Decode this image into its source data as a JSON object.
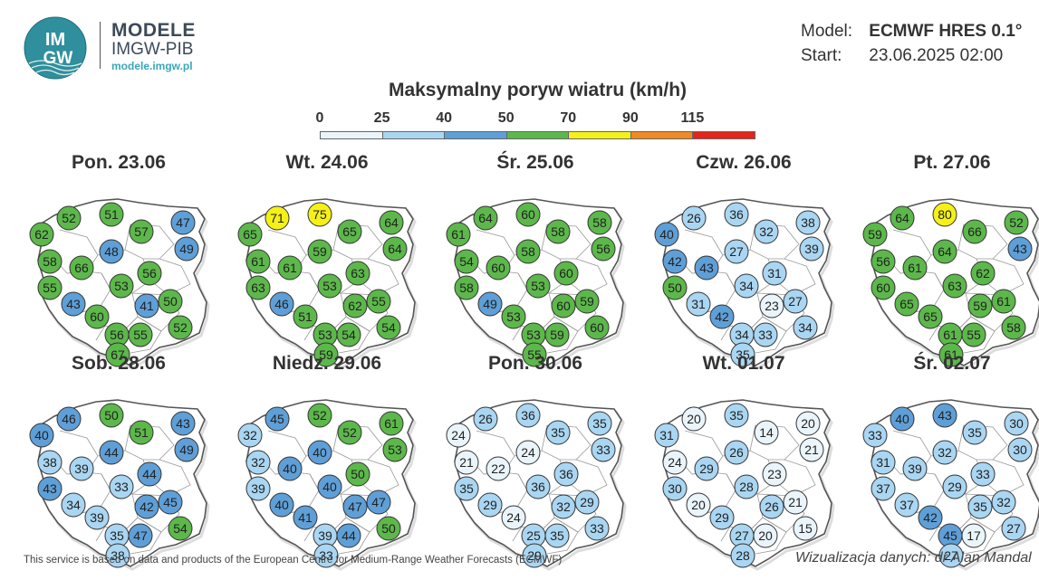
{
  "brand": {
    "logo_text_top": "IM",
    "logo_text_bottom": "GW",
    "title": "MODELE",
    "subtitle": "IMGW-PIB",
    "url": "modele.imgw.pl"
  },
  "meta": {
    "model_label": "Model:",
    "model_value": "ECMWF HRES 0.1°",
    "start_label": "Start:",
    "start_value": "23.06.2025 02:00"
  },
  "map_title": "Maksymalny poryw wiatru (km/h)",
  "scale": {
    "ticks": [
      "0",
      "25",
      "40",
      "50",
      "70",
      "90",
      "115"
    ],
    "bins": [
      {
        "from": 0,
        "to": 25,
        "color": "#eaf4fb"
      },
      {
        "from": 25,
        "to": 40,
        "color": "#a9d6f2"
      },
      {
        "from": 40,
        "to": 50,
        "color": "#5e9fd8"
      },
      {
        "from": 50,
        "to": 70,
        "color": "#5cb84a"
      },
      {
        "from": 70,
        "to": 90,
        "color": "#f5f017"
      },
      {
        "from": 90,
        "to": 115,
        "color": "#f08a24"
      },
      {
        "from": 115,
        "to": 140,
        "color": "#e3251c"
      }
    ]
  },
  "days": [
    {
      "label": "Pon. 23.06",
      "values": [
        62,
        52,
        51,
        57,
        47,
        49,
        58,
        66,
        48,
        56,
        55,
        53,
        41,
        50,
        52,
        43,
        60,
        56,
        55,
        67
      ]
    },
    {
      "label": "Wt. 24.06",
      "values": [
        65,
        71,
        75,
        65,
        64,
        64,
        61,
        61,
        59,
        63,
        63,
        53,
        62,
        55,
        54,
        46,
        51,
        53,
        54,
        59
      ]
    },
    {
      "label": "Śr. 25.06",
      "values": [
        61,
        64,
        60,
        58,
        58,
        56,
        54,
        60,
        58,
        60,
        58,
        53,
        60,
        59,
        60,
        49,
        53,
        53,
        59,
        55
      ]
    },
    {
      "label": "Czw. 26.06",
      "values": [
        40,
        26,
        36,
        32,
        38,
        39,
        42,
        43,
        27,
        31,
        50,
        34,
        23,
        27,
        34,
        31,
        42,
        34,
        33,
        35
      ]
    },
    {
      "label": "Pt. 27.06",
      "values": [
        59,
        64,
        80,
        66,
        52,
        43,
        56,
        61,
        64,
        62,
        60,
        63,
        59,
        61,
        58,
        65,
        65,
        61,
        55,
        61
      ]
    },
    {
      "label": "Sob. 28.06",
      "values": [
        40,
        46,
        50,
        51,
        43,
        49,
        38,
        39,
        44,
        44,
        43,
        33,
        42,
        45,
        54,
        34,
        39,
        35,
        47,
        38
      ]
    },
    {
      "label": "Niedz. 29.06",
      "values": [
        32,
        45,
        52,
        52,
        61,
        53,
        32,
        40,
        40,
        50,
        39,
        40,
        47,
        47,
        50,
        40,
        41,
        39,
        44,
        33
      ]
    },
    {
      "label": "Pon. 30.06",
      "values": [
        24,
        26,
        36,
        35,
        35,
        33,
        21,
        22,
        24,
        36,
        35,
        36,
        32,
        29,
        33,
        29,
        24,
        25,
        35,
        29
      ]
    },
    {
      "label": "Wt. 01.07",
      "values": [
        31,
        20,
        35,
        14,
        20,
        21,
        24,
        29,
        26,
        23,
        30,
        28,
        26,
        21,
        15,
        20,
        29,
        27,
        20,
        28
      ]
    },
    {
      "label": "Śr. 02.07",
      "values": [
        33,
        40,
        43,
        35,
        30,
        30,
        31,
        39,
        32,
        33,
        37,
        29,
        35,
        32,
        27,
        37,
        42,
        45,
        17,
        27
      ]
    }
  ],
  "footer": "This service is based on data and products of the European Centre for Medium-Range Weather Forecasts (ECMWF)",
  "credit": "Wizualizacja danych: dr Alan Mandal"
}
